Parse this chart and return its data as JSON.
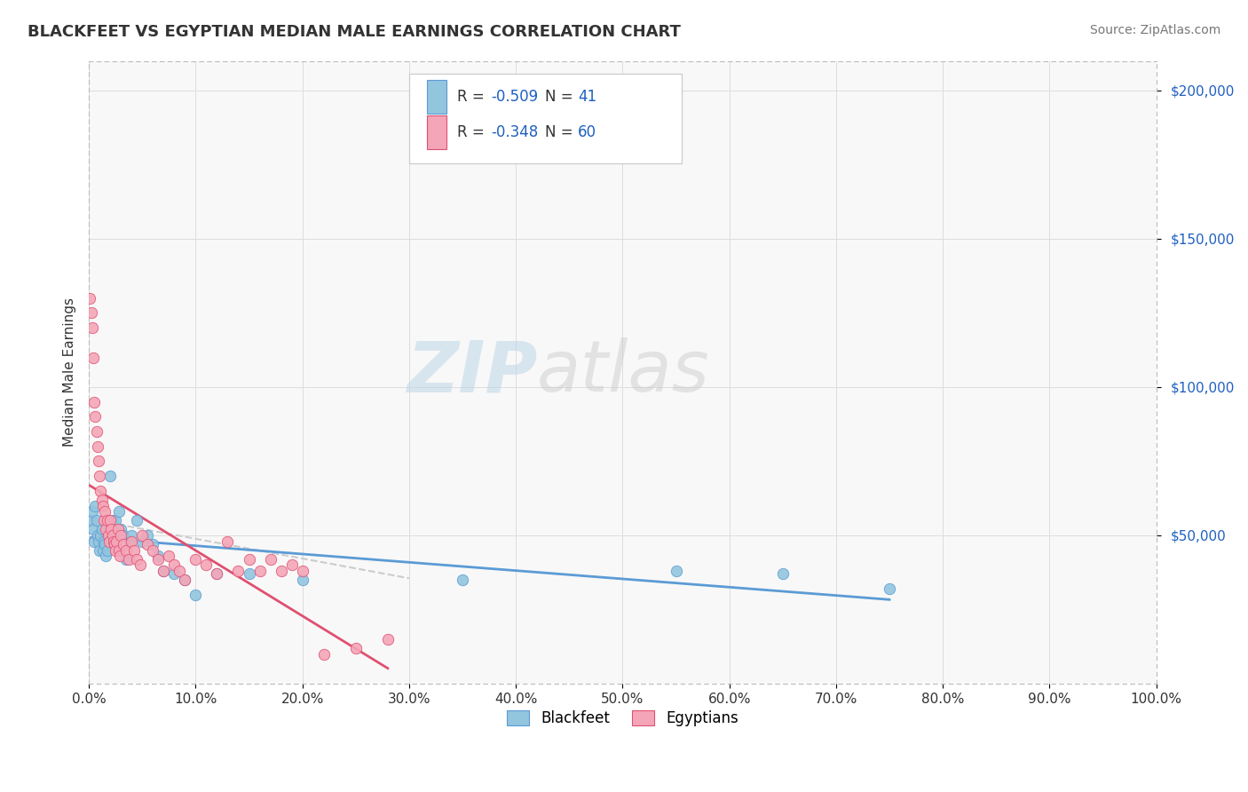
{
  "title": "BLACKFEET VS EGYPTIAN MEDIAN MALE EARNINGS CORRELATION CHART",
  "source": "Source: ZipAtlas.com",
  "ylabel": "Median Male Earnings",
  "watermark_zip": "ZIP",
  "watermark_atlas": "atlas",
  "legend_labels": [
    "Blackfeet",
    "Egyptians"
  ],
  "blackfeet_R": -0.509,
  "blackfeet_N": 41,
  "egyptian_R": -0.348,
  "egyptian_N": 60,
  "blackfeet_color": "#92c5de",
  "egyptian_color": "#f4a6b8",
  "blackfeet_line_color": "#5b9bd5",
  "egyptian_line_color": "#e05070",
  "title_color": "#333333",
  "source_color": "#777777",
  "r_color": "#2060c0",
  "ytick_color": "#2060c0",
  "background_color": "#ffffff",
  "plot_bg_color": "#f8f8f8",
  "blackfeet_x": [
    0.002,
    0.003,
    0.004,
    0.005,
    0.006,
    0.007,
    0.008,
    0.009,
    0.01,
    0.011,
    0.012,
    0.013,
    0.014,
    0.015,
    0.016,
    0.017,
    0.02,
    0.022,
    0.025,
    0.028,
    0.03,
    0.032,
    0.035,
    0.038,
    0.04,
    0.045,
    0.05,
    0.055,
    0.06,
    0.065,
    0.07,
    0.08,
    0.09,
    0.1,
    0.12,
    0.15,
    0.2,
    0.35,
    0.55,
    0.65,
    0.75
  ],
  "blackfeet_y": [
    55000,
    58000,
    52000,
    48000,
    60000,
    55000,
    50000,
    48000,
    45000,
    50000,
    52000,
    45000,
    48000,
    47000,
    43000,
    45000,
    70000,
    55000,
    55000,
    58000,
    52000,
    50000,
    42000,
    48000,
    50000,
    55000,
    48000,
    50000,
    47000,
    43000,
    38000,
    37000,
    35000,
    30000,
    37000,
    37000,
    35000,
    35000,
    38000,
    37000,
    32000
  ],
  "egyptian_x": [
    0.001,
    0.002,
    0.003,
    0.004,
    0.005,
    0.006,
    0.007,
    0.008,
    0.009,
    0.01,
    0.011,
    0.012,
    0.013,
    0.014,
    0.015,
    0.016,
    0.017,
    0.018,
    0.019,
    0.02,
    0.021,
    0.022,
    0.023,
    0.024,
    0.025,
    0.026,
    0.027,
    0.028,
    0.029,
    0.03,
    0.032,
    0.035,
    0.037,
    0.04,
    0.042,
    0.045,
    0.048,
    0.05,
    0.055,
    0.06,
    0.065,
    0.07,
    0.075,
    0.08,
    0.085,
    0.09,
    0.1,
    0.11,
    0.12,
    0.13,
    0.14,
    0.15,
    0.16,
    0.17,
    0.18,
    0.19,
    0.2,
    0.22,
    0.25,
    0.28
  ],
  "egyptian_y": [
    130000,
    125000,
    120000,
    110000,
    95000,
    90000,
    85000,
    80000,
    75000,
    70000,
    65000,
    62000,
    60000,
    55000,
    58000,
    52000,
    55000,
    50000,
    48000,
    55000,
    52000,
    50000,
    48000,
    47000,
    45000,
    48000,
    52000,
    45000,
    43000,
    50000,
    47000,
    45000,
    42000,
    48000,
    45000,
    42000,
    40000,
    50000,
    47000,
    45000,
    42000,
    38000,
    43000,
    40000,
    38000,
    35000,
    42000,
    40000,
    37000,
    48000,
    38000,
    42000,
    38000,
    42000,
    38000,
    40000,
    38000,
    10000,
    12000,
    15000
  ],
  "xlim": [
    0.0,
    1.0
  ],
  "ylim": [
    0,
    210000
  ],
  "yticks": [
    50000,
    100000,
    150000,
    200000
  ],
  "ytick_labels": [
    "$50,000",
    "$100,000",
    "$150,000",
    "$200,000"
  ],
  "xticks": [
    0.0,
    0.1,
    0.2,
    0.3,
    0.4,
    0.5,
    0.6,
    0.7,
    0.8,
    0.9,
    1.0
  ],
  "xtick_labels": [
    "0.0%",
    "10.0%",
    "20.0%",
    "30.0%",
    "40.0%",
    "50.0%",
    "60.0%",
    "70.0%",
    "80.0%",
    "90.0%",
    "100.0%"
  ]
}
